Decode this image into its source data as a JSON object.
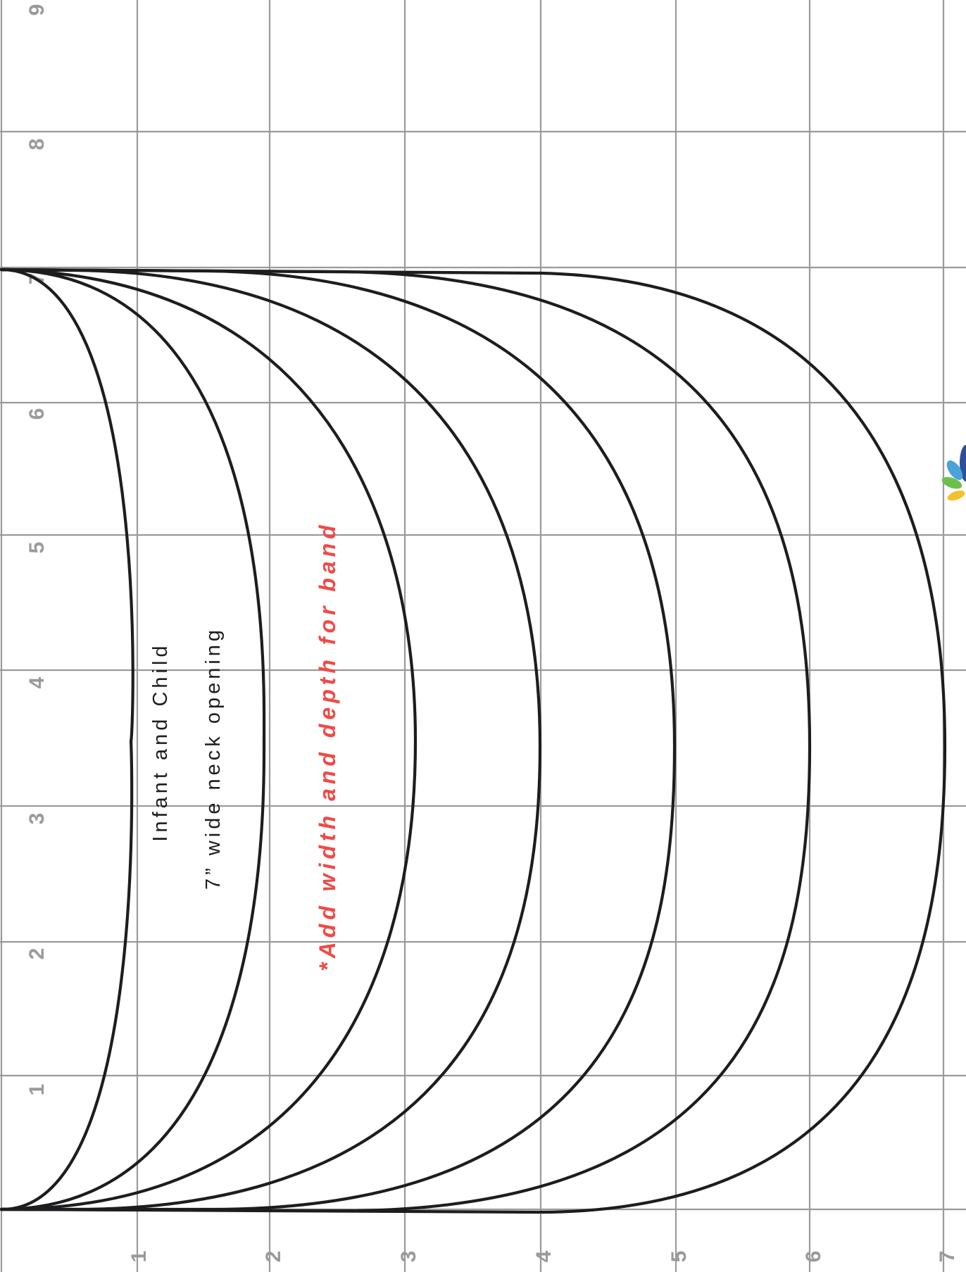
{
  "pattern": {
    "title": "Infant and Child",
    "subtitle": "7” wide neck opening",
    "band_note": "*Add width and depth for band",
    "curve_count": 7
  },
  "grid": {
    "top_labels": [
      "1",
      "2",
      "3",
      "4",
      "5",
      "6",
      "7",
      "8",
      "9"
    ],
    "bottom_labels": [
      "1",
      "2",
      "3",
      "4",
      "5",
      "6",
      "7"
    ]
  },
  "colors": {
    "line": "#1e1c1f",
    "grid": "#9a9a9a",
    "note_accent": "#f04a45",
    "logo": [
      "#2f4f9c",
      "#4aa3d8",
      "#6cc04a",
      "#f2c12e"
    ]
  },
  "logo": {
    "icon": "peacock-logo-icon"
  }
}
